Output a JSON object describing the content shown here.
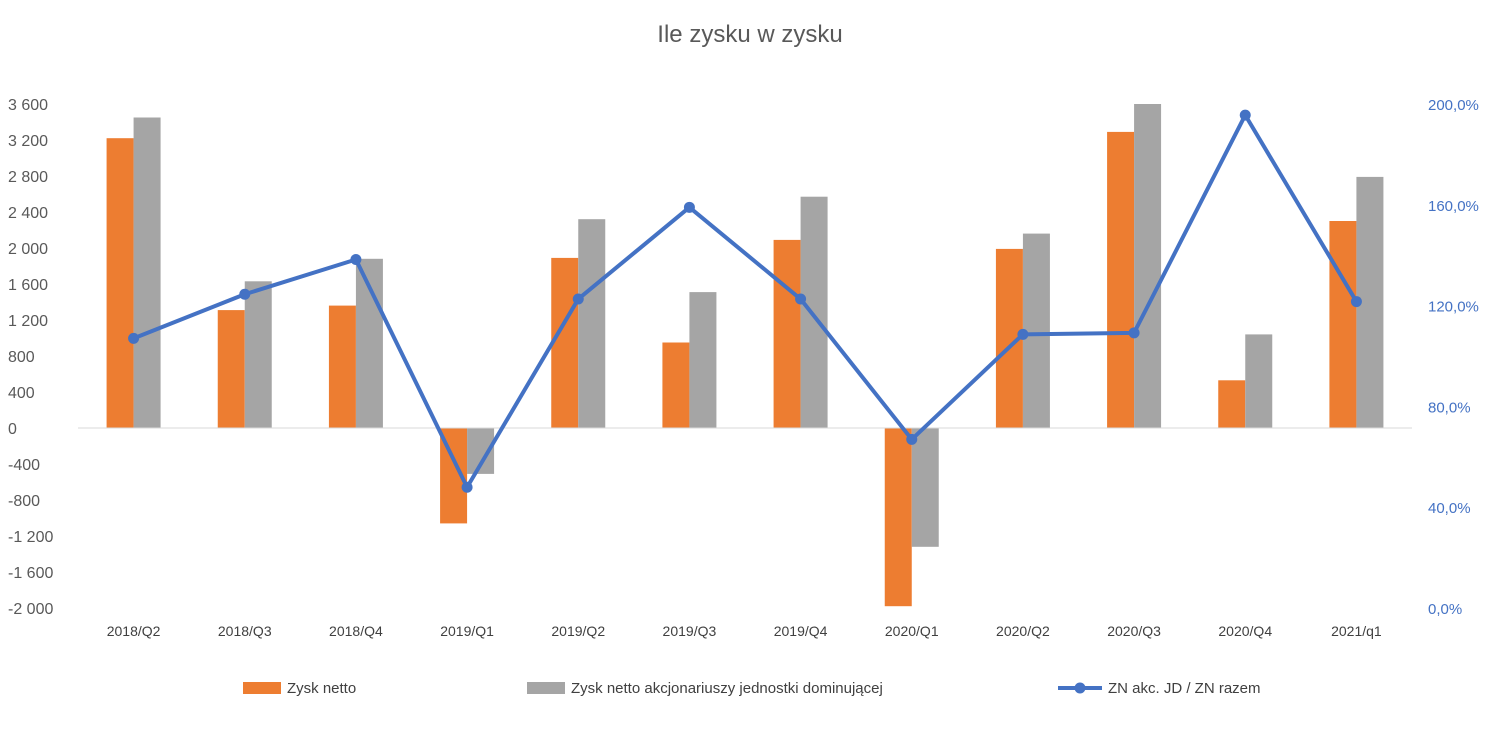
{
  "chart_data": {
    "type": "bar",
    "title": "Ile zysku w zysku",
    "categories": [
      "2018/Q2",
      "2018/Q3",
      "2018/Q4",
      "2019/Q1",
      "2019/Q2",
      "2019/Q3",
      "2019/Q4",
      "2020/Q1",
      "2020/Q2",
      "2020/Q3",
      "2020/Q4",
      "2021/q1"
    ],
    "series": [
      {
        "name": "Zysk netto",
        "kind": "bar",
        "axis": "left",
        "color": "#ed7d31",
        "values": [
          3220,
          1310,
          1360,
          -1060,
          1890,
          950,
          2090,
          -1980,
          1990,
          3290,
          530,
          2300
        ]
      },
      {
        "name": "Zysk netto akcjonariuszy jednostki dominującej",
        "kind": "bar",
        "axis": "left",
        "color": "#a5a5a5",
        "values": [
          3450,
          1630,
          1880,
          -510,
          2320,
          1510,
          2570,
          -1320,
          2160,
          3600,
          1040,
          2790
        ]
      },
      {
        "name": "ZN akc. JD / ZN razem",
        "kind": "line",
        "axis": "right",
        "color": "#4472c4",
        "values": [
          107.0,
          124.5,
          138.3,
          47.9,
          122.6,
          159.0,
          122.6,
          66.9,
          108.6,
          109.2,
          195.6,
          121.6
        ]
      }
    ],
    "y_left": {
      "ylim": [
        -2000,
        3600
      ],
      "ticks": [
        3600,
        3200,
        2800,
        2400,
        2000,
        1600,
        1200,
        800,
        400,
        0,
        -400,
        -800,
        -1200,
        -1600,
        -2000
      ],
      "tick_labels": [
        "3 600",
        "3 200",
        "2 800",
        "2 400",
        "2 000",
        "1 600",
        "1 200",
        "800",
        "400",
        "0",
        "-400",
        "-800",
        "-1 200",
        "-1 600",
        "-2 000"
      ]
    },
    "y_right": {
      "ylim": [
        0,
        200
      ],
      "ticks": [
        200,
        160,
        120,
        80,
        40,
        0
      ],
      "tick_labels": [
        "200,0%",
        "160,0%",
        "120,0%",
        "80,0%",
        "40,0%",
        "0,0%"
      ]
    },
    "legend_position": "bottom",
    "grid": false
  }
}
